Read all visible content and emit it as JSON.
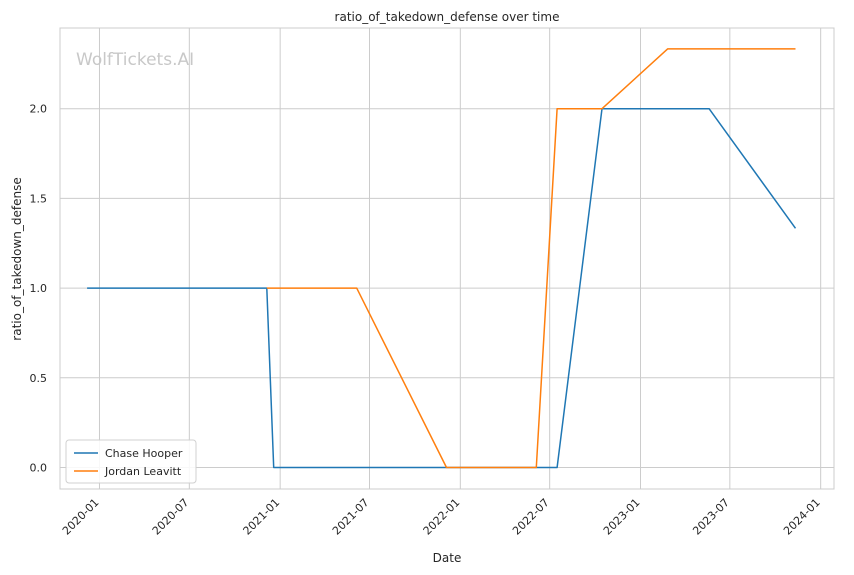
{
  "chart_data": {
    "type": "line",
    "title": "ratio_of_takedown_defense over time",
    "xlabel": "Date",
    "ylabel": "ratio_of_takedown_defense",
    "watermark": "WolfTickets.AI",
    "x_ticks": [
      "2020-01",
      "2020-07",
      "2021-01",
      "2021-07",
      "2022-01",
      "2022-07",
      "2023-01",
      "2023-07",
      "2024-01"
    ],
    "y_ticks": [
      "0.0",
      "0.5",
      "1.0",
      "1.5",
      "2.0"
    ],
    "xlim": [
      "2019-10-13",
      "2024-01-28"
    ],
    "ylim": [
      -0.12,
      2.45
    ],
    "grid": true,
    "legend_position": "lower-left",
    "series": [
      {
        "name": "Chase Hooper",
        "color": "#1f77b4",
        "points": [
          {
            "x": "2019-12-07",
            "y": 1.0
          },
          {
            "x": "2020-12-05",
            "y": 1.0
          },
          {
            "x": "2020-12-19",
            "y": 0.0
          },
          {
            "x": "2022-07-16",
            "y": 0.0
          },
          {
            "x": "2022-10-15",
            "y": 2.0
          },
          {
            "x": "2023-05-20",
            "y": 2.0
          },
          {
            "x": "2023-11-11",
            "y": 1.3333
          }
        ]
      },
      {
        "name": "Jordan Leavitt",
        "color": "#ff7f0e",
        "points": [
          {
            "x": "2020-12-05",
            "y": 1.0
          },
          {
            "x": "2021-06-05",
            "y": 1.0
          },
          {
            "x": "2021-12-04",
            "y": 0.0
          },
          {
            "x": "2022-06-04",
            "y": 0.0
          },
          {
            "x": "2022-07-16",
            "y": 2.0
          },
          {
            "x": "2022-10-15",
            "y": 2.0
          },
          {
            "x": "2023-02-25",
            "y": 2.3333
          },
          {
            "x": "2023-11-11",
            "y": 2.3333
          }
        ]
      }
    ]
  }
}
